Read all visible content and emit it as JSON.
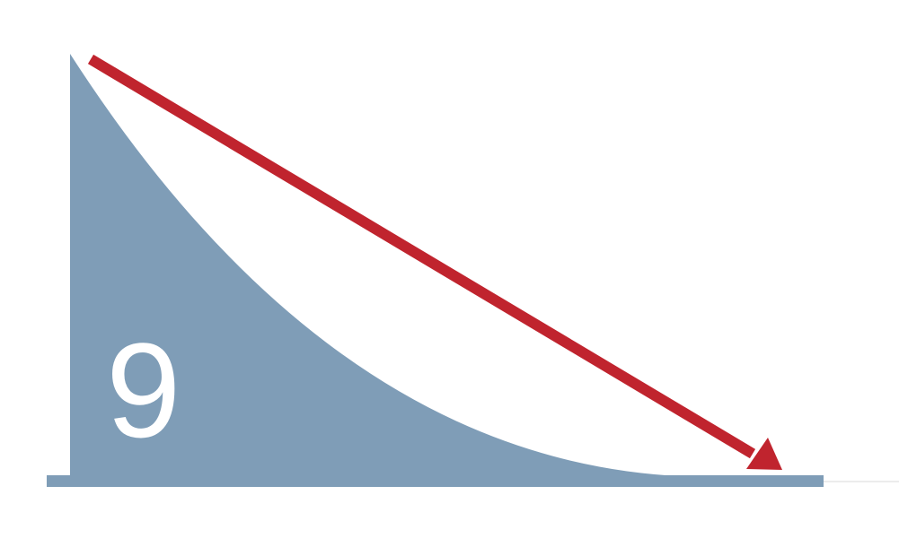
{
  "diagram": {
    "number_label": "9",
    "colors": {
      "shape_fill": "#7f9db7",
      "arrow": "#c0242e",
      "label": "#ffffff",
      "baseline_extension": "#e6e6e6"
    },
    "icons": {
      "arrow": "arrow-down-right-icon"
    }
  }
}
